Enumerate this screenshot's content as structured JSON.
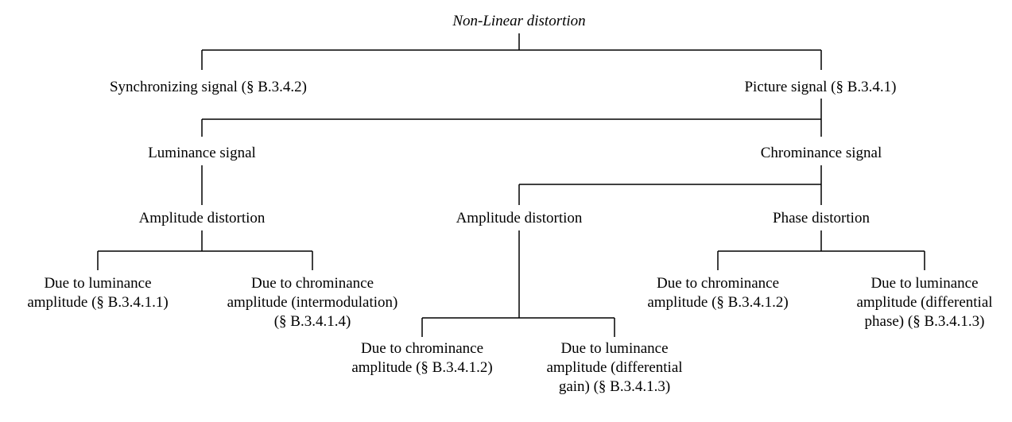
{
  "nodes": [
    {
      "lines": [
        "Non-Linear distortion"
      ]
    },
    {
      "lines": [
        "Synchronizing signal (§ B.3.4.2)"
      ]
    },
    {
      "lines": [
        "Picture signal (§ B.3.4.1)"
      ]
    },
    {
      "lines": [
        "Luminance signal"
      ]
    },
    {
      "lines": [
        "Chrominance signal"
      ]
    },
    {
      "lines": [
        "Amplitude distortion"
      ]
    },
    {
      "lines": [
        "Amplitude distortion"
      ]
    },
    {
      "lines": [
        "Phase distortion"
      ]
    },
    {
      "lines": [
        "Due to luminance",
        "amplitude (§ B.3.4.1.1)"
      ]
    },
    {
      "lines": [
        "Due to chrominance",
        "amplitude (intermodulation)",
        "(§ B.3.4.1.4)"
      ]
    },
    {
      "lines": [
        "Due to chrominance",
        "amplitude (§ B.3.4.1.2)"
      ]
    },
    {
      "lines": [
        "Due to luminance",
        "amplitude (differential",
        "phase) (§ B.3.4.1.3)"
      ]
    },
    {
      "lines": [
        "Due to chrominance",
        "amplitude (§ B.3.4.1.2)"
      ]
    },
    {
      "lines": [
        "Due to luminance",
        "amplitude (differential",
        "gain) (§ B.3.4.1.3)"
      ]
    }
  ]
}
